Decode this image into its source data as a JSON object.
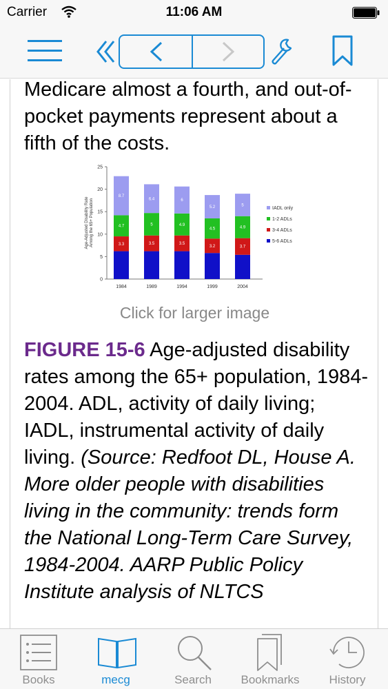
{
  "status_bar": {
    "carrier": "Carrier",
    "time": "11:06 AM"
  },
  "toolbar": {
    "accent": "#1a8ad4"
  },
  "content": {
    "intro_text": "Medicare almost a fourth, and out-of-pocket payments represent about a fifth of the costs.",
    "click_for_larger": "Click for larger image",
    "figure_label": "FIGURE 15-6",
    "caption_text": " Age-adjusted disability rates among the 65+ population, 1984-2004. ADL, activity of daily living; IADL, instrumental activity of daily living. ",
    "caption_source": "(Source: Redfoot DL, House A. More older people with disabilities living in the community: trends form the National Long-Term Care Survey, 1984-2004. AARP Public Policy Institute analysis of NLTCS"
  },
  "chart_data": {
    "type": "bar",
    "stacked": true,
    "categories": [
      "1984",
      "1989",
      "1994",
      "1999",
      "2004"
    ],
    "ylabel": "Age-Adjusted Disability Rate Among the 65+ Population",
    "ylim": [
      0,
      25
    ],
    "yticks": [
      0,
      5,
      10,
      15,
      20,
      25
    ],
    "legend_position": "right",
    "series": [
      {
        "name": "5-6 ADLs",
        "color": "#1010c8",
        "values": [
          6.2,
          6.2,
          6.2,
          5.8,
          5.4
        ]
      },
      {
        "name": "3-4 ADLs",
        "color": "#d01818",
        "values": [
          3.3,
          3.5,
          3.5,
          3.2,
          3.7
        ]
      },
      {
        "name": "1-2 ADLs",
        "color": "#22c022",
        "values": [
          4.7,
          5.0,
          4.9,
          4.5,
          4.9
        ]
      },
      {
        "name": "IADL only",
        "color": "#9c9cf0",
        "values": [
          8.7,
          6.4,
          6.0,
          5.2,
          5.0
        ]
      }
    ],
    "bar_labels": [
      [
        "",
        "3.3",
        "4.7",
        "8.7"
      ],
      [
        "",
        "3.5",
        "5",
        "6.4"
      ],
      [
        "",
        "3.5",
        "4.9",
        "6"
      ],
      [
        "",
        "3.2",
        "4.5",
        "5.2"
      ],
      [
        "",
        "3.7",
        "4.9",
        "5"
      ]
    ]
  },
  "tabbar": {
    "items": [
      {
        "label": "Books",
        "icon": "list-icon"
      },
      {
        "label": "mecg",
        "icon": "open-book-icon"
      },
      {
        "label": "Search",
        "icon": "magnifier-icon"
      },
      {
        "label": "Bookmarks",
        "icon": "bookmarks-icon"
      },
      {
        "label": "History",
        "icon": "clock-icon"
      }
    ]
  }
}
